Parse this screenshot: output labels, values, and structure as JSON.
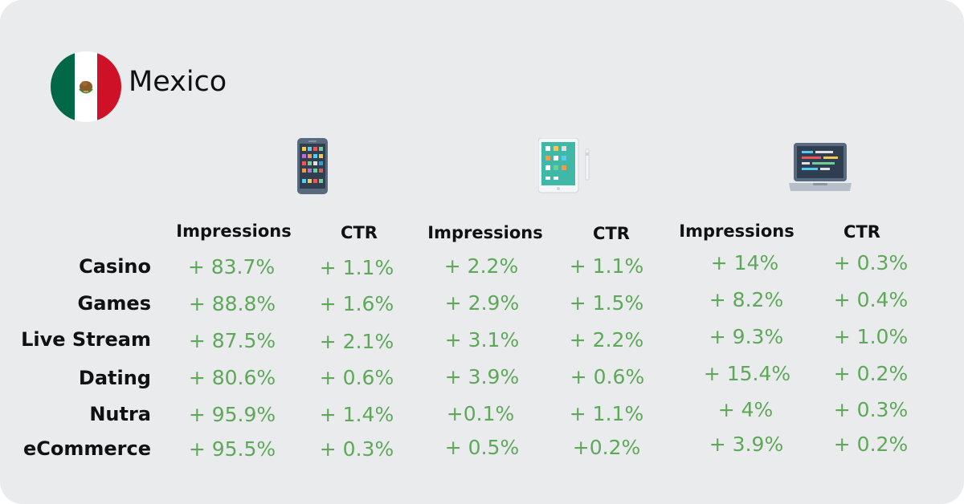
{
  "country": {
    "name": "Mexico",
    "flag_colors": [
      "#006847",
      "#ffffff",
      "#ce1126"
    ]
  },
  "devices": [
    {
      "icon": "smartphone-icon",
      "columns": [
        "Impressions",
        "CTR"
      ]
    },
    {
      "icon": "tablet-icon",
      "columns": [
        "Impressions",
        "CTR"
      ]
    },
    {
      "icon": "laptop-icon",
      "columns": [
        "Impressions",
        "CTR"
      ]
    }
  ],
  "rows": [
    {
      "label": "Casino",
      "values": [
        "+ 83.7%",
        "+ 1.1%",
        "+ 2.2%",
        "+ 1.1%",
        "+ 14%",
        "+ 0.3%"
      ]
    },
    {
      "label": "Games",
      "values": [
        "+ 88.8%",
        "+ 1.6%",
        "+ 2.9%",
        "+ 1.5%",
        "+ 8.2%",
        "+ 0.4%"
      ]
    },
    {
      "label": "Live Stream",
      "values": [
        "+ 87.5%",
        "+ 2.1%",
        "+ 3.1%",
        "+ 2.2%",
        "+ 9.3%",
        "+ 1.0%"
      ]
    },
    {
      "label": "Dating",
      "values": [
        "+ 80.6%",
        "+ 0.6%",
        "+ 3.9%",
        "+ 0.6%",
        "+ 15.4%",
        "+ 0.2%"
      ]
    },
    {
      "label": "Nutra",
      "values": [
        "+ 95.9%",
        "+ 1.4%",
        "+0.1%",
        "+ 1.1%",
        "+ 4%",
        "+ 0.3%"
      ]
    },
    {
      "label": "eCommerce",
      "values": [
        "+ 95.5%",
        "+ 0.3%",
        "+ 0.5%",
        "+0.2%",
        "+ 3.9%",
        "+ 0.2%"
      ]
    }
  ]
}
